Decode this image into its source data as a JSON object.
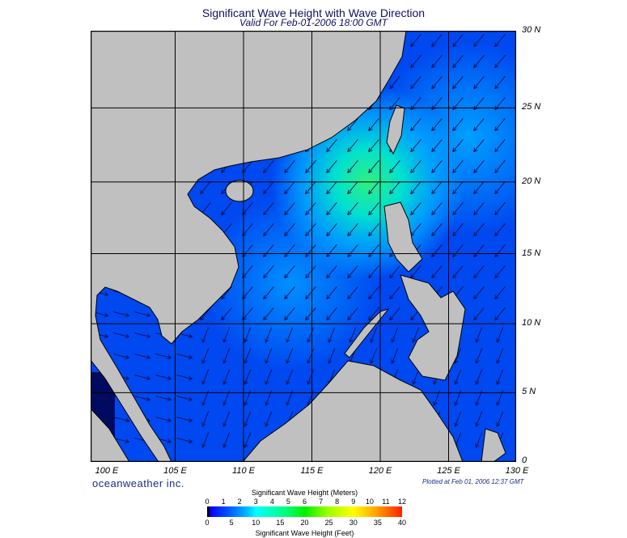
{
  "title": "Significant Wave Height with Wave Direction",
  "subtitle": "Valid For Feb-01-2006 18:00 GMT",
  "longitude_labels": [
    "100 E",
    "105 E",
    "110 E",
    "115 E",
    "120 E",
    "125 E",
    "130 E"
  ],
  "latitude_labels": [
    "30 N",
    "25 N",
    "20 N",
    "15 N",
    "10 N",
    "5 N",
    "0"
  ],
  "brand": "oceanweather inc.",
  "plotted_at": "Plotted at Feb 01, 2006 12:37 GMT",
  "colorbar": {
    "title_meters": "Significant Wave Height (Meters)",
    "title_feet": "Significant Wave Height (Feet)",
    "meter_ticks": [
      "0",
      "1",
      "2",
      "3",
      "4",
      "5",
      "6",
      "7",
      "8",
      "9",
      "10",
      "11",
      "12"
    ],
    "feet_ticks": [
      "0",
      "5",
      "10",
      "15",
      "20",
      "25",
      "30",
      "35",
      "40"
    ]
  },
  "colors": {
    "land": "#c0c0c0",
    "ocean_low": "#0040f0",
    "ocean_mid": "#00b8ff",
    "ocean_high": "#30f080"
  },
  "wave_direction": "predominantly from northeast (arrows point southwest)"
}
